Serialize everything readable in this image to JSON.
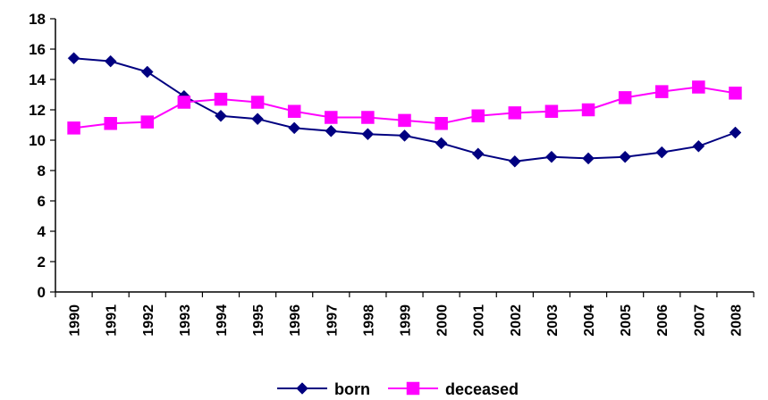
{
  "chart_data": {
    "type": "line",
    "title": "",
    "xlabel": "",
    "ylabel": "",
    "x": [
      "1990",
      "1991",
      "1992",
      "1993",
      "1994",
      "1995",
      "1996",
      "1997",
      "1998",
      "1999",
      "2000",
      "2001",
      "2002",
      "2003",
      "2004",
      "2005",
      "2006",
      "2007",
      "2008"
    ],
    "ylim": [
      0,
      18
    ],
    "yticks": [
      0,
      2,
      4,
      6,
      8,
      10,
      12,
      14,
      16,
      18
    ],
    "grid": false,
    "legend_position": "bottom",
    "series": [
      {
        "name": "born",
        "color": "#000080",
        "marker": "diamond",
        "values": [
          15.4,
          15.2,
          14.5,
          12.9,
          11.6,
          11.4,
          10.8,
          10.6,
          10.4,
          10.3,
          9.8,
          9.1,
          8.6,
          8.9,
          8.8,
          8.9,
          9.2,
          9.6,
          10.5
        ]
      },
      {
        "name": "deceased",
        "color": "#ff00ff",
        "marker": "square",
        "values": [
          10.8,
          11.1,
          11.2,
          12.5,
          12.7,
          12.5,
          11.9,
          11.5,
          11.5,
          11.3,
          11.1,
          11.6,
          11.8,
          11.9,
          12.0,
          12.8,
          13.2,
          13.5,
          13.1
        ]
      }
    ]
  }
}
